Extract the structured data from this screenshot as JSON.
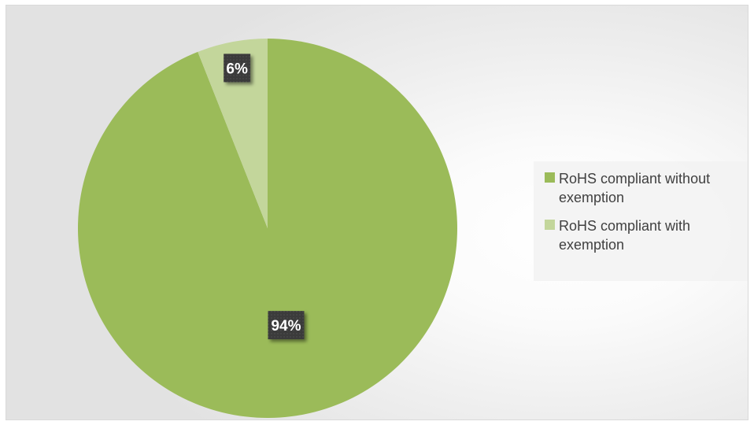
{
  "chart_data": {
    "type": "pie",
    "title": "",
    "categories": [
      "RoHS compliant without exemption",
      "RoHS compliant with exemption"
    ],
    "values": [
      94,
      6
    ],
    "data_labels": [
      "94%",
      "6%"
    ],
    "colors": [
      "#9bbb59",
      "#c3d69b"
    ],
    "legend_position": "right",
    "start_angle_degrees": 0,
    "direction": "clockwise"
  }
}
